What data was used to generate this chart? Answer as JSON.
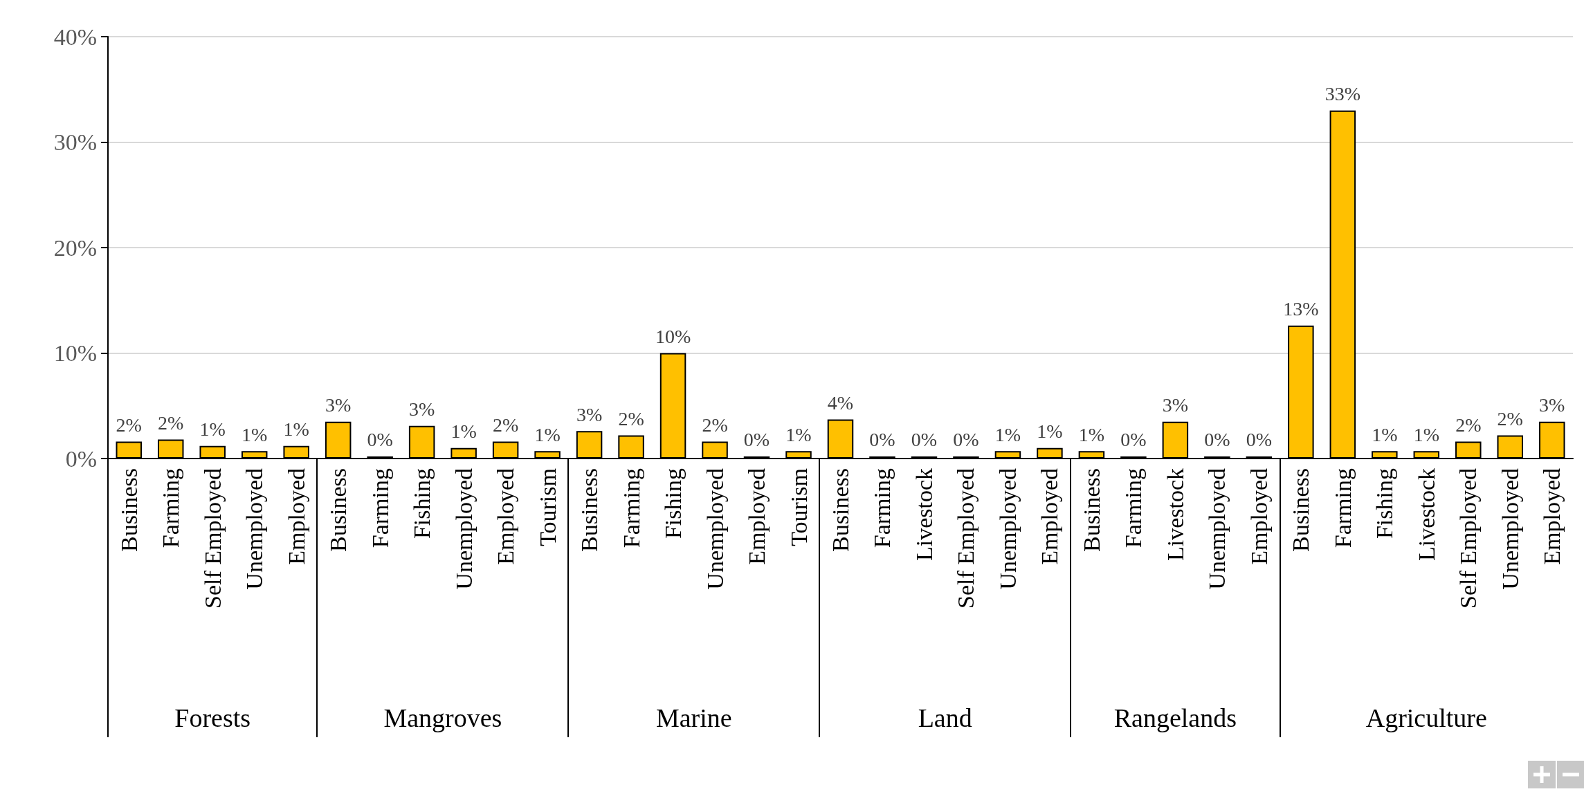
{
  "chart_data": {
    "type": "bar",
    "categories": [
      "Business",
      "Farming",
      "Self Employed",
      "Unemployed",
      "Employed",
      "Business",
      "Farming",
      "Fishing",
      "Unemployed",
      "Employed",
      "Tourism",
      "Business",
      "Farming",
      "Fishing",
      "Unemployed",
      "Employed",
      "Tourism",
      "Business",
      "Farming",
      "Livestock",
      "Self Employed",
      "Unemployed",
      "Employed",
      "Business",
      "Farming",
      "Livestock",
      "Unemployed",
      "Employed",
      "Business",
      "Farming",
      "Fishing",
      "Livestock",
      "Self Employed",
      "Unemployed",
      "Employed"
    ],
    "values": [
      1.6,
      1.8,
      1.2,
      0.7,
      1.2,
      3.5,
      0.2,
      3.1,
      1.0,
      1.6,
      0.7,
      2.6,
      2.2,
      10.0,
      1.6,
      0.2,
      0.7,
      3.7,
      0.2,
      0.2,
      0.2,
      0.7,
      1.0,
      0.7,
      0.2,
      3.5,
      0.2,
      0.2,
      12.6,
      33.0,
      0.7,
      0.7,
      1.6,
      2.2,
      3.5
    ],
    "value_labels": [
      "2%",
      "2%",
      "1%",
      "1%",
      "1%",
      "3%",
      "0%",
      "3%",
      "1%",
      "2%",
      "1%",
      "3%",
      "2%",
      "10%",
      "2%",
      "0%",
      "1%",
      "4%",
      "0%",
      "0%",
      "0%",
      "1%",
      "1%",
      "1%",
      "0%",
      "3%",
      "0%",
      "0%",
      "13%",
      "33%",
      "1%",
      "1%",
      "2%",
      "2%",
      "3%"
    ],
    "color": "#ffc000",
    "ylim": [
      0,
      40
    ],
    "yticks": [
      {
        "value": 0,
        "label": "0%"
      },
      {
        "value": 10,
        "label": "10%"
      },
      {
        "value": 20,
        "label": "20%"
      },
      {
        "value": 30,
        "label": "30%"
      },
      {
        "value": 40,
        "label": "40%"
      }
    ],
    "grid": "y",
    "annotations": [
      "Forests",
      "Mangroves",
      "Marine",
      "Land",
      "Rangelands",
      "Agriculture"
    ]
  }
}
